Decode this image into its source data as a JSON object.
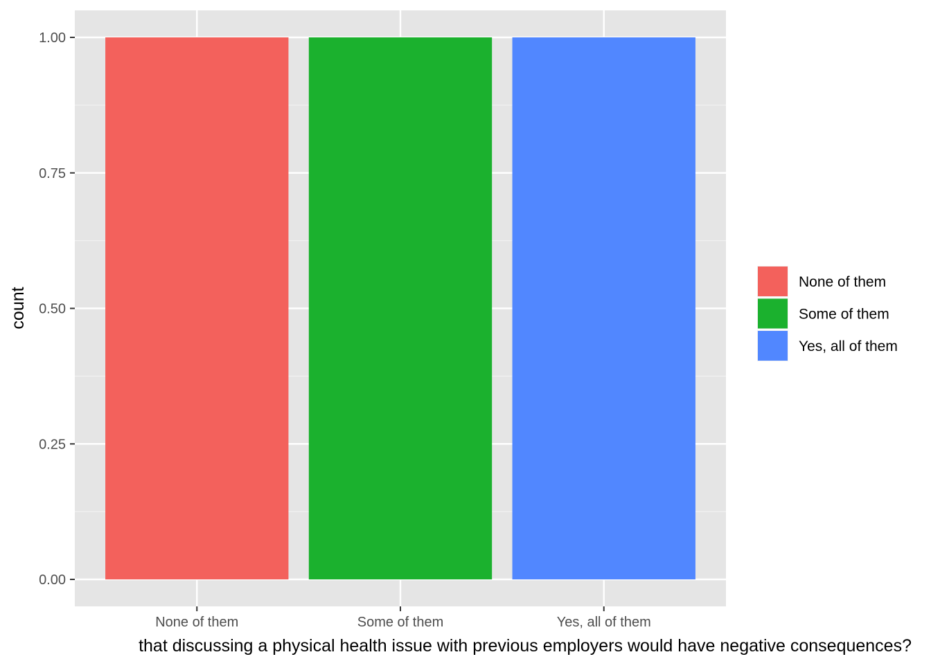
{
  "chart_data": {
    "type": "bar",
    "categories": [
      "None of them",
      "Some of them",
      "Yes, all of them"
    ],
    "values": [
      1,
      1,
      1
    ],
    "colors": [
      "#F3615C",
      "#1BB12E",
      "#5187FF"
    ],
    "xlabel": "that discussing a physical health issue with previous employers would have negative consequences?",
    "ylabel": "count",
    "ylim": [
      0,
      1.05
    ],
    "yticks": [
      0,
      0.25,
      0.5,
      0.75,
      1.0
    ],
    "ytick_labels": [
      "0.00",
      "0.25",
      "0.50",
      "0.75",
      "1.00"
    ],
    "grid": true,
    "panel_background": "#E5E5E5",
    "legend": {
      "placement": "right",
      "entries": [
        "None of them",
        "Some of them",
        "Yes, all of them"
      ]
    }
  }
}
